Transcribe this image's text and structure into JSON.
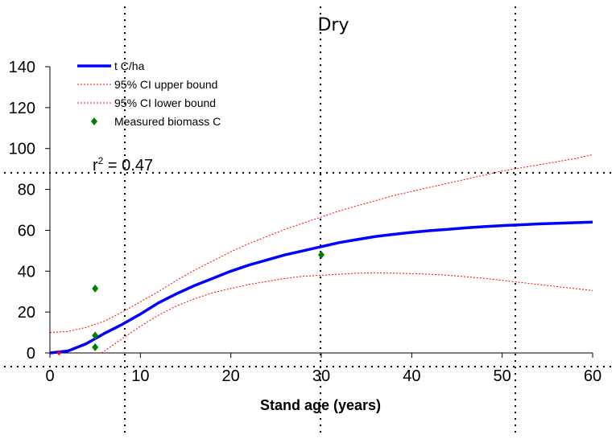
{
  "chart_data": {
    "type": "line",
    "title": "Dry",
    "xlabel": "Stand age (years)",
    "ylabel": "",
    "xlim": [
      0,
      60
    ],
    "ylim": [
      0,
      140
    ],
    "xticks": [
      0,
      10,
      20,
      30,
      40,
      50,
      60
    ],
    "yticks": [
      0,
      20,
      40,
      60,
      80,
      100,
      120,
      140
    ],
    "grid": "dotted",
    "legend_position": "top-left",
    "annotation": {
      "text_prefix": "r",
      "text_sup": "2",
      "text_suffix": " = 0.47"
    },
    "series": [
      {
        "name": "t C/ha",
        "kind": "line",
        "color": "#0000ff",
        "x": [
          0,
          2,
          4,
          6,
          8,
          10,
          12,
          14,
          16,
          18,
          20,
          22,
          24,
          26,
          28,
          30,
          32,
          34,
          36,
          38,
          40,
          42,
          44,
          46,
          48,
          50,
          52,
          54,
          56,
          58,
          60
        ],
        "y": [
          0,
          1,
          4.5,
          9.5,
          14,
          19,
          24.5,
          29,
          33,
          36.5,
          40,
          43,
          45.5,
          48,
          50,
          52,
          54,
          55.5,
          57,
          58,
          59,
          59.8,
          60.5,
          61.2,
          61.8,
          62.3,
          62.7,
          63.1,
          63.4,
          63.7,
          64
        ]
      },
      {
        "name": "95% CI upper bound",
        "kind": "line",
        "dashed": true,
        "color": "#ff0000",
        "x": [
          0,
          2,
          4,
          6,
          8,
          10,
          12,
          14,
          16,
          18,
          20,
          22,
          24,
          26,
          28,
          30,
          32,
          34,
          36,
          38,
          40,
          42,
          44,
          46,
          48,
          50,
          52,
          54,
          56,
          58,
          60
        ],
        "y": [
          10,
          10.5,
          12.5,
          15.5,
          20,
          25,
          30,
          35.5,
          40.5,
          45,
          49.5,
          53.5,
          57,
          60.5,
          63.5,
          66.5,
          69.5,
          72,
          74.5,
          77,
          79,
          81,
          83,
          85,
          87,
          89,
          90.5,
          92,
          93.5,
          95,
          97
        ]
      },
      {
        "name": "95% CI lower bound",
        "kind": "line",
        "dashed": true,
        "color": "#ff0000",
        "x": [
          5.7,
          8,
          10,
          12,
          14,
          16,
          18,
          20,
          22,
          24,
          26,
          28,
          30,
          32,
          34,
          36,
          38,
          40,
          42,
          44,
          46,
          48,
          50,
          52,
          54,
          56,
          58,
          60
        ],
        "y": [
          0,
          7,
          13,
          18.5,
          23,
          26.5,
          29.5,
          31.5,
          33.5,
          35,
          36.5,
          37.5,
          38,
          38.5,
          39,
          39.2,
          39,
          38.8,
          38.5,
          38,
          37.3,
          36.5,
          35.5,
          34.5,
          33.5,
          32.5,
          31.5,
          30.5
        ]
      },
      {
        "name": "Measured biomass C",
        "kind": "scatter",
        "marker": "diamond",
        "color": "#008000",
        "x": [
          5,
          5,
          5,
          30
        ],
        "y": [
          31.5,
          8.5,
          2.8,
          48
        ]
      }
    ],
    "extra_points": [
      {
        "x": 1,
        "y": 0,
        "color": "#ff0000"
      }
    ]
  }
}
